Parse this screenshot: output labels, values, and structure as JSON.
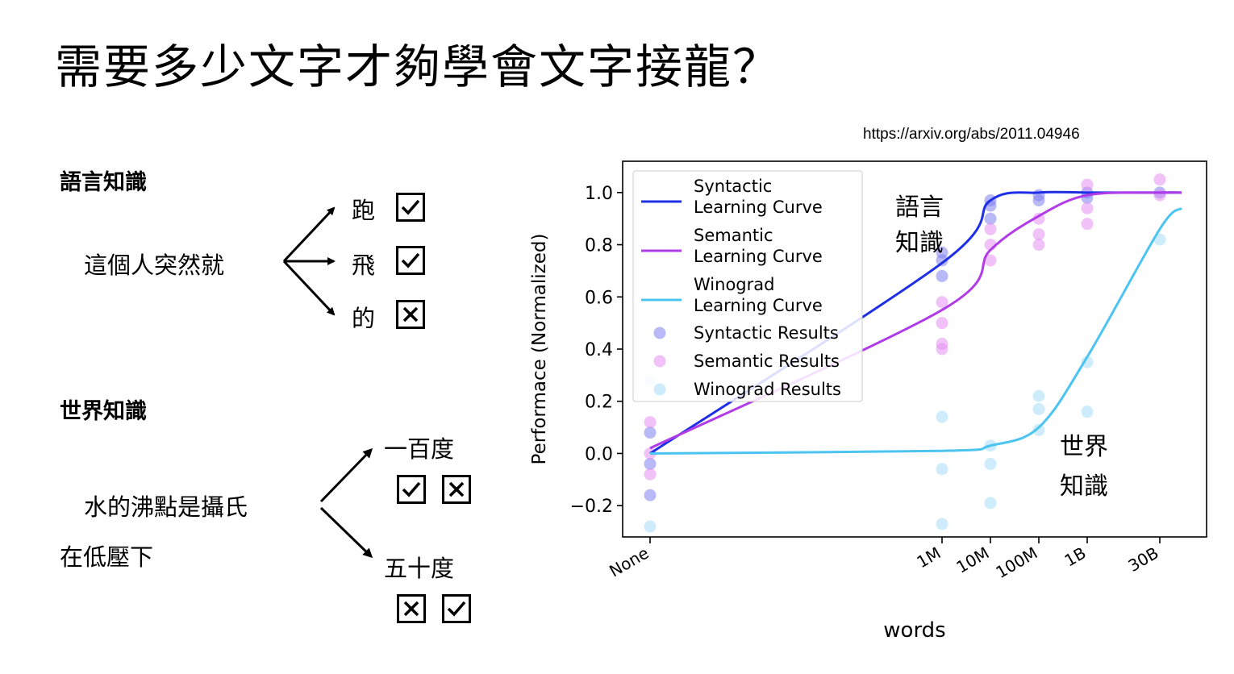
{
  "slide": {
    "title": "需要多少文字才夠學會文字接龍？",
    "source_url": "https://arxiv.org/abs/2011.04946",
    "linguistic": {
      "heading": "語言知識",
      "prompt": "這個人突然就",
      "options": [
        {
          "word": "跑",
          "marks": [
            "check"
          ]
        },
        {
          "word": "飛",
          "marks": [
            "check"
          ]
        },
        {
          "word": "的",
          "marks": [
            "cross"
          ]
        }
      ]
    },
    "world": {
      "heading": "世界知識",
      "prompt_line1": "水的沸點是攝氏",
      "prompt_line2": "在低壓下",
      "options": [
        {
          "word": "一百度",
          "marks": [
            "check",
            "cross"
          ]
        },
        {
          "word": "五十度",
          "marks": [
            "cross",
            "check"
          ]
        }
      ]
    }
  },
  "chart_data": {
    "type": "scatter",
    "xlabel": "words",
    "ylabel": "Performace (Normalized)",
    "categories": [
      "None",
      "1M",
      "10M",
      "100M",
      "1B",
      "30B"
    ],
    "x_scale": "log-like categorical",
    "ylim": [
      -0.32,
      1.12
    ],
    "yticks": [
      "−0.2",
      "0.0",
      "0.2",
      "0.4",
      "0.6",
      "0.8",
      "1.0"
    ],
    "legend_position": "top-left",
    "grid": false,
    "series": [
      {
        "name": "Syntactic Learning Curve",
        "kind": "line",
        "color": "#1f2fe6",
        "x": [
          "None",
          "1M",
          "10M",
          "100M",
          "1B",
          "30B"
        ],
        "y": [
          0.0,
          0.73,
          0.97,
          1.0,
          1.0,
          1.0
        ]
      },
      {
        "name": "Semantic Learning Curve",
        "kind": "line",
        "color": "#b23be8",
        "x": [
          "None",
          "1M",
          "10M",
          "100M",
          "1B",
          "30B"
        ],
        "y": [
          0.02,
          0.55,
          0.78,
          0.91,
          0.99,
          1.0
        ]
      },
      {
        "name": "Winograd Learning Curve",
        "kind": "line",
        "color": "#4cc4f2",
        "x": [
          "None",
          "1M",
          "10M",
          "100M",
          "1B",
          "30B"
        ],
        "y": [
          0.0,
          0.01,
          0.03,
          0.1,
          0.37,
          0.86
        ]
      },
      {
        "name": "Syntactic Results",
        "kind": "scatter",
        "color": "#7f7ff2",
        "x": [
          "None",
          "None",
          "None",
          "1M",
          "1M",
          "1M",
          "10M",
          "10M",
          "10M",
          "100M",
          "100M",
          "1B",
          "1B",
          "30B"
        ],
        "y": [
          0.08,
          -0.04,
          -0.16,
          0.68,
          0.74,
          0.77,
          0.9,
          0.95,
          0.97,
          0.97,
          0.99,
          1.0,
          0.98,
          1.0
        ]
      },
      {
        "name": "Semantic Results",
        "kind": "scatter",
        "color": "#e38ff2",
        "x": [
          "None",
          "None",
          "None",
          "1M",
          "1M",
          "1M",
          "1M",
          "10M",
          "10M",
          "10M",
          "100M",
          "100M",
          "100M",
          "1B",
          "1B",
          "1B",
          "30B",
          "30B"
        ],
        "y": [
          0.12,
          0.0,
          -0.08,
          0.58,
          0.5,
          0.42,
          0.4,
          0.8,
          0.74,
          0.86,
          0.9,
          0.84,
          0.8,
          0.94,
          0.88,
          1.03,
          1.05,
          0.99
        ]
      },
      {
        "name": "Winograd Results",
        "kind": "scatter",
        "color": "#a6ddf7",
        "x": [
          "None",
          "None",
          "1M",
          "1M",
          "1M",
          "10M",
          "10M",
          "10M",
          "100M",
          "100M",
          "100M",
          "1B",
          "1B",
          "30B"
        ],
        "y": [
          0.28,
          -0.28,
          0.14,
          -0.06,
          -0.27,
          0.03,
          -0.04,
          -0.19,
          0.22,
          0.17,
          0.09,
          0.35,
          0.16,
          0.82
        ]
      }
    ],
    "annotations": [
      {
        "text_line1": "語言",
        "text_line2": "知識"
      },
      {
        "text_line1": "世界",
        "text_line2": "知識"
      }
    ]
  }
}
